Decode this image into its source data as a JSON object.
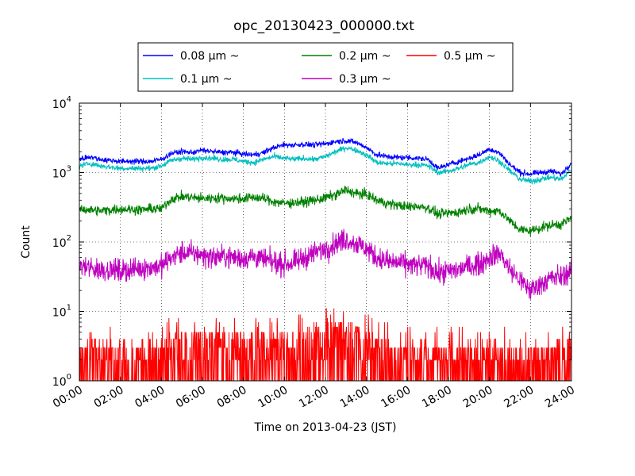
{
  "chart_data": {
    "type": "line",
    "title": "opc_20130423_000000.txt",
    "xlabel": "Time on 2013-04-23 (JST)",
    "ylabel": "Count",
    "yscale": "log",
    "ylim": [
      1,
      10000
    ],
    "xlim": [
      "00:00",
      "24:00"
    ],
    "grid": true,
    "legend_placement": "top-center",
    "x_tick_labels": [
      "00:00",
      "02:00",
      "04:00",
      "06:00",
      "08:00",
      "10:00",
      "12:00",
      "14:00",
      "16:00",
      "18:00",
      "20:00",
      "22:00",
      "24:00"
    ],
    "y_ticks": [
      {
        "value": 1,
        "base": "10",
        "exp": "0"
      },
      {
        "value": 10,
        "base": "10",
        "exp": "1"
      },
      {
        "value": 100,
        "base": "10",
        "exp": "2"
      },
      {
        "value": 1000,
        "base": "10",
        "exp": "3"
      },
      {
        "value": 10000,
        "base": "10",
        "exp": "4"
      }
    ],
    "x_hours": [
      0,
      0.5,
      1,
      1.5,
      2,
      2.5,
      3,
      3.5,
      4,
      4.5,
      5,
      5.5,
      6,
      6.5,
      7,
      7.5,
      8,
      8.5,
      9,
      9.5,
      10,
      10.5,
      11,
      11.5,
      12,
      12.5,
      13,
      13.5,
      14,
      14.5,
      15,
      15.5,
      16,
      16.5,
      17,
      17.5,
      18,
      18.5,
      19,
      19.5,
      20,
      20.5,
      21,
      21.5,
      22,
      22.5,
      23,
      23.5,
      24
    ],
    "series": [
      {
        "name": "0.08 μm ~",
        "color": "#0000ff",
        "noise": 0.04,
        "values": [
          1550,
          1700,
          1550,
          1500,
          1450,
          1450,
          1450,
          1450,
          1550,
          1900,
          2000,
          1950,
          2100,
          2000,
          1950,
          1950,
          1850,
          1800,
          1950,
          2300,
          2500,
          2500,
          2550,
          2500,
          2600,
          2800,
          2900,
          2700,
          2300,
          1800,
          1700,
          1650,
          1650,
          1600,
          1550,
          1150,
          1300,
          1450,
          1600,
          1800,
          2200,
          1900,
          1300,
          1000,
          950,
          1000,
          1050,
          950,
          1400
        ]
      },
      {
        "name": "0.1 μm ~",
        "color": "#00bfbf",
        "noise": 0.04,
        "values": [
          1250,
          1350,
          1250,
          1200,
          1150,
          1150,
          1150,
          1150,
          1250,
          1500,
          1600,
          1550,
          1650,
          1600,
          1550,
          1550,
          1450,
          1400,
          1550,
          1700,
          1600,
          1550,
          1600,
          1550,
          1700,
          2000,
          2300,
          2100,
          1800,
          1400,
          1350,
          1350,
          1300,
          1300,
          1250,
          1000,
          1050,
          1150,
          1300,
          1400,
          1700,
          1450,
          1050,
          800,
          750,
          800,
          850,
          800,
          1100
        ]
      },
      {
        "name": "0.2 μm ~",
        "color": "#008000",
        "noise": 0.07,
        "values": [
          300,
          290,
          280,
          290,
          300,
          295,
          290,
          300,
          300,
          420,
          450,
          440,
          420,
          430,
          430,
          420,
          420,
          440,
          420,
          380,
          360,
          370,
          380,
          400,
          430,
          480,
          560,
          500,
          480,
          400,
          360,
          340,
          320,
          330,
          310,
          250,
          260,
          270,
          300,
          300,
          280,
          280,
          200,
          150,
          145,
          160,
          175,
          180,
          220
        ]
      },
      {
        "name": "0.3 μm ~",
        "color": "#bf00bf",
        "noise": 0.16,
        "values": [
          45,
          42,
          40,
          40,
          38,
          40,
          42,
          43,
          45,
          60,
          70,
          68,
          65,
          60,
          62,
          60,
          58,
          62,
          55,
          50,
          48,
          50,
          60,
          70,
          80,
          95,
          110,
          95,
          80,
          60,
          52,
          50,
          48,
          45,
          46,
          35,
          38,
          40,
          45,
          48,
          60,
          70,
          40,
          28,
          20,
          25,
          30,
          32,
          38
        ]
      },
      {
        "name": "0.5 μm ~",
        "color": "#ff0000",
        "noise": 0.55,
        "values": [
          2,
          2,
          2,
          2.2,
          2,
          2,
          2,
          2,
          2,
          3,
          3.2,
          3,
          3,
          3,
          3,
          2.8,
          2.8,
          3,
          3,
          3,
          3,
          3,
          3.2,
          3.5,
          4,
          4,
          4.5,
          4,
          3.5,
          2.5,
          2.2,
          2,
          2,
          2,
          2,
          2,
          2,
          2,
          2,
          2,
          2.2,
          2,
          2,
          2,
          2,
          2,
          2,
          2,
          2.2
        ]
      }
    ]
  }
}
